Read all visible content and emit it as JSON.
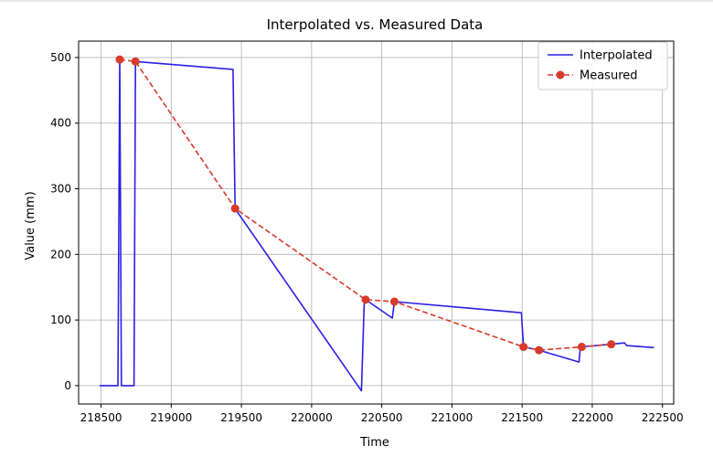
{
  "chart_data": {
    "type": "line",
    "title": "Interpolated vs. Measured Data",
    "xlabel": "Time",
    "ylabel": "Value (mm)",
    "xlim": [
      218340,
      222580
    ],
    "ylim": [
      -28,
      525
    ],
    "x_ticks": [
      218500,
      219000,
      219500,
      220000,
      220500,
      221000,
      221500,
      222000,
      222500
    ],
    "y_ticks": [
      0,
      100,
      200,
      300,
      400,
      500
    ],
    "grid": true,
    "legend_position": "top-right",
    "series": [
      {
        "name": "Interpolated",
        "style": "solid",
        "color": "#2a1fe6",
        "x": [
          218490,
          218620,
          218633,
          218645,
          218660,
          218735,
          218745,
          219440,
          219455,
          219470,
          220355,
          220375,
          220385,
          220575,
          220590,
          221495,
          221510,
          221620,
          221905,
          221915,
          221925,
          222230,
          222245,
          222440
        ],
        "y": [
          0,
          0,
          497,
          0,
          0,
          0,
          494,
          482,
          270,
          265,
          -8,
          124,
          131,
          103,
          128,
          111,
          59,
          54,
          36,
          58,
          59,
          65,
          61,
          58
        ]
      },
      {
        "name": "Measured",
        "style": "dashed",
        "marker": "circle",
        "color": "#d93a2b",
        "x": [
          218633,
          218745,
          219455,
          220385,
          220590,
          221510,
          221620,
          221925,
          222135
        ],
        "y": [
          497,
          494,
          270,
          131,
          128,
          59,
          54,
          59,
          63
        ]
      }
    ]
  }
}
